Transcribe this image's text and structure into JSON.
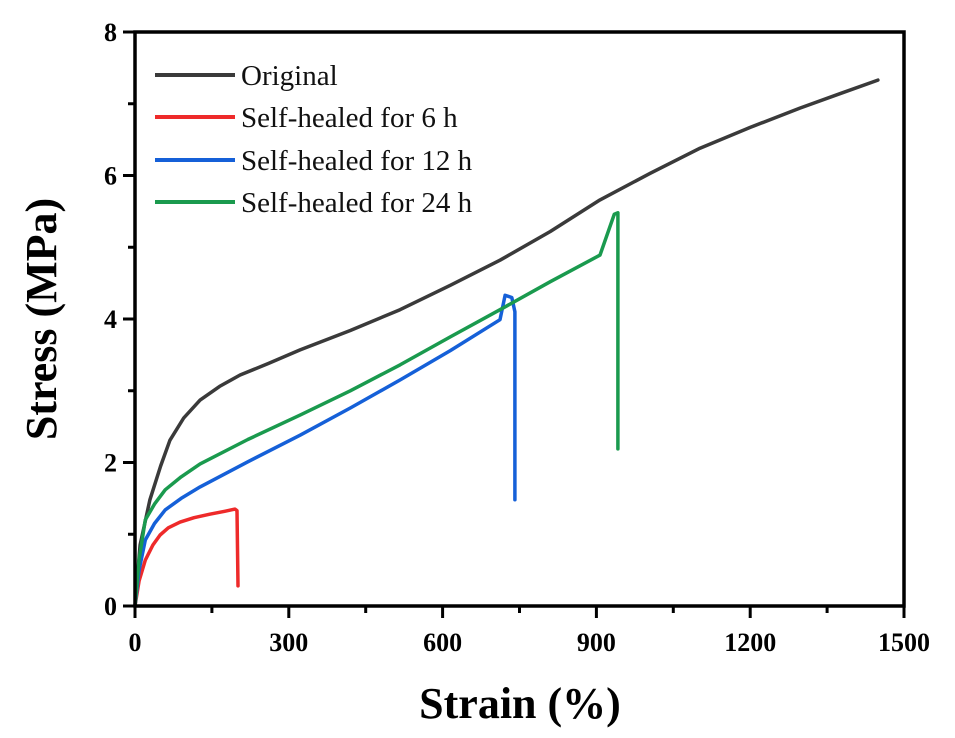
{
  "chart_data": {
    "type": "line",
    "title": "",
    "xlabel": "Strain (%)",
    "ylabel": "Stress (MPa)",
    "xlim": [
      0,
      1500
    ],
    "ylim": [
      0,
      8
    ],
    "xticks": [
      0,
      300,
      600,
      900,
      1200,
      1500
    ],
    "yticks": [
      0,
      2,
      4,
      6,
      8
    ],
    "xtick_labels": [
      "0",
      "300",
      "600",
      "900",
      "1200",
      "1500"
    ],
    "ytick_labels": [
      "0",
      "2",
      "4",
      "6",
      "8"
    ],
    "grid": false,
    "legend_position": "top-left",
    "series": [
      {
        "name": "Original",
        "color": "#3a3a3a",
        "x": [
          0,
          10,
          29,
          50,
          68,
          95,
          127,
          165,
          205,
          260,
          322,
          420,
          517,
          615,
          712,
          810,
          907,
          1005,
          1102,
          1200,
          1297,
          1375,
          1449
        ],
        "y": [
          0,
          0.85,
          1.48,
          1.95,
          2.31,
          2.62,
          2.87,
          3.06,
          3.22,
          3.38,
          3.57,
          3.84,
          4.13,
          4.47,
          4.82,
          5.22,
          5.66,
          6.03,
          6.38,
          6.67,
          6.94,
          7.14,
          7.33
        ]
      },
      {
        "name": "Self-healed for 6 h",
        "color": "#ee2a2a",
        "x": [
          0,
          8,
          20,
          35,
          49,
          65,
          88,
          115,
          146,
          175,
          195,
          199,
          201
        ],
        "y": [
          0,
          0.35,
          0.64,
          0.85,
          0.99,
          1.09,
          1.17,
          1.23,
          1.28,
          1.32,
          1.35,
          1.33,
          0.28
        ]
      },
      {
        "name": "Self-healed for 12 h",
        "color": "#1560d8",
        "x": [
          0,
          8,
          20,
          38,
          59,
          90,
          127,
          220,
          322,
          420,
          517,
          615,
          712,
          722,
          735,
          741,
          741
        ],
        "y": [
          0,
          0.5,
          0.92,
          1.15,
          1.34,
          1.5,
          1.66,
          2.01,
          2.38,
          2.76,
          3.15,
          3.56,
          3.99,
          4.33,
          4.3,
          4.1,
          1.48
        ]
      },
      {
        "name": "Self-healed for 24 h",
        "color": "#1a9a4e",
        "x": [
          0,
          8,
          20,
          38,
          59,
          90,
          127,
          220,
          322,
          420,
          517,
          615,
          712,
          810,
          907,
          935,
          942,
          942
        ],
        "y": [
          0,
          0.65,
          1.2,
          1.42,
          1.62,
          1.8,
          1.98,
          2.32,
          2.66,
          3.0,
          3.36,
          3.75,
          4.13,
          4.52,
          4.89,
          5.46,
          5.48,
          2.19
        ]
      }
    ]
  }
}
